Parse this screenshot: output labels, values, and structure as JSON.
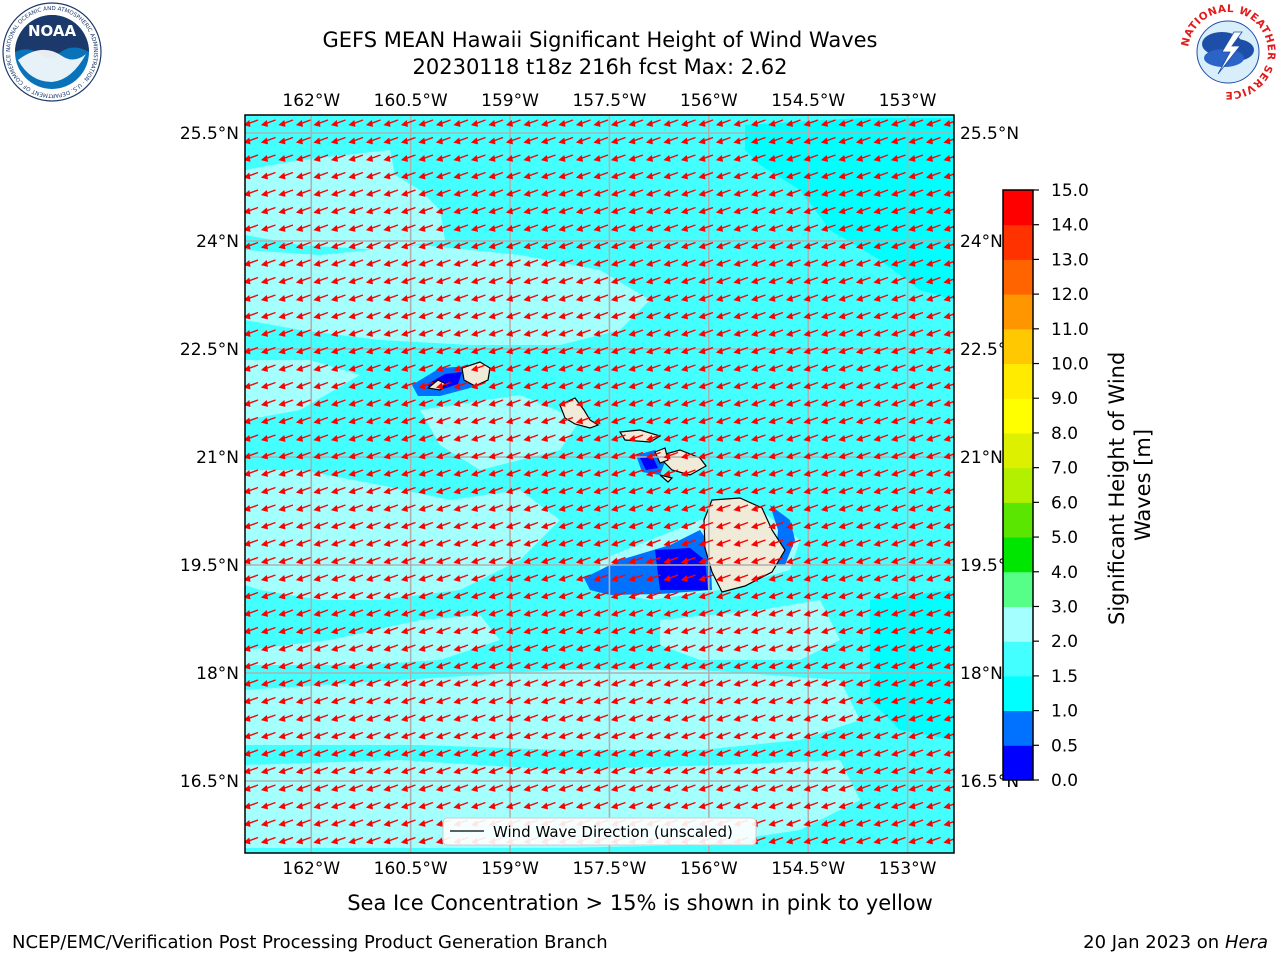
{
  "title_line1": "GEFS MEAN Hawaii Significant Height of Wind Waves",
  "title_line2": "20230118 t18z 216h fcst   Max: 2.62",
  "subtitle": "Sea Ice Concentration > 15% is shown in pink to yellow",
  "footer_left": "NCEP/EMC/Verification Post Processing Product Generation Branch",
  "footer_right_date": "20 Jan 2023 on ",
  "footer_right_host": "Hera",
  "logo_left": {
    "name": "NOAA",
    "ring_text": "NATIONAL OCEANIC AND ATMOSPHERIC ADMINISTRATION · U.S. DEPARTMENT OF COMMERCE",
    "colors": {
      "sky": "#0a72b9",
      "bird": "#ffffff",
      "navy": "#1b3a6b"
    }
  },
  "logo_right": {
    "ring_text": "NATIONAL WEATHER SERVICE",
    "colors": {
      "ring_text": "#e21b1b",
      "storm": "#1e4fa8",
      "bolt": "#ffffff"
    }
  },
  "map": {
    "lon_labels": [
      "162°W",
      "160.5°W",
      "159°W",
      "157.5°W",
      "156°W",
      "154.5°W",
      "153°W"
    ],
    "lon_values": [
      -162,
      -160.5,
      -159,
      -157.5,
      -156,
      -154.5,
      -153
    ],
    "lat_labels": [
      "25.5°N",
      "24°N",
      "22.5°N",
      "21°N",
      "19.5°N",
      "18°N",
      "16.5°N"
    ],
    "lat_values": [
      25.5,
      24,
      22.5,
      21,
      19.5,
      18,
      16.5
    ],
    "lon_range": [
      -163.0,
      -152.3
    ],
    "lat_range": [
      15.5,
      25.75
    ],
    "arrow_color": "#ff0000",
    "grid_color": "#b0b0b0",
    "land_color": "#efebd8",
    "legend": "Wind Wave Direction (unscaled)"
  },
  "colorbar": {
    "label_line1": "Significant Height of Wind",
    "label_line2": "Waves [m]",
    "ticks": [
      "15.0",
      "14.0",
      "13.0",
      "12.0",
      "11.0",
      "10.0",
      "9.0",
      "8.0",
      "7.0",
      "6.0",
      "5.0",
      "4.0",
      "3.0",
      "2.0",
      "1.5",
      "1.0",
      "0.5",
      "0.0"
    ],
    "levels": [
      0.0,
      0.5,
      1.0,
      1.5,
      2.0,
      3.0,
      4.0,
      5.0,
      6.0,
      7.0,
      8.0,
      9.0,
      10.0,
      11.0,
      12.0,
      13.0,
      14.0,
      15.0
    ],
    "colors": [
      "#0000ff",
      "#0072ff",
      "#00ffff",
      "#44ffff",
      "#a4ffff",
      "#55ff88",
      "#00e600",
      "#5ae600",
      "#b2f000",
      "#dcf000",
      "#ffff00",
      "#ffeb00",
      "#ffc800",
      "#ff9600",
      "#ff6400",
      "#ff3200",
      "#ff0000"
    ]
  }
}
